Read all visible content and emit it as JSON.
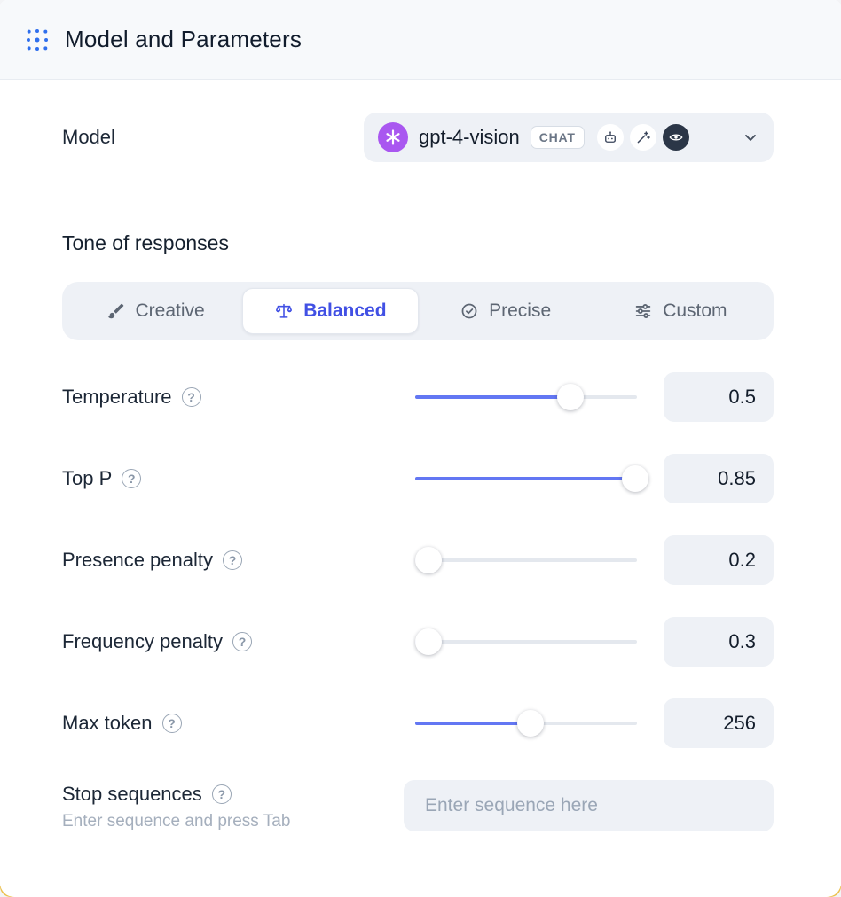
{
  "colors": {
    "accent": "#4150e4",
    "slider": "#6377f3",
    "model_logo": "#a957f0",
    "header_icon": "#2f6fed",
    "yellow_edge": "#ecc14f"
  },
  "header": {
    "title": "Model and Parameters",
    "icon": "scan-dots-icon"
  },
  "model": {
    "label": "Model",
    "name": "gpt-4-vision",
    "type_badge": "CHAT",
    "logo_icon": "openai-logo-icon",
    "capability_icons": [
      "robot-icon",
      "magic-wand-icon",
      "vision-eye-icon"
    ],
    "chevron_icon": "chevron-down-icon"
  },
  "tone": {
    "heading": "Tone of responses",
    "options": [
      {
        "label": "Creative",
        "icon": "paintbrush-icon",
        "selected": false
      },
      {
        "label": "Balanced",
        "icon": "balance-scale-icon",
        "selected": true
      },
      {
        "label": "Precise",
        "icon": "target-check-icon",
        "selected": false
      },
      {
        "label": "Custom",
        "icon": "sliders-icon",
        "selected": false
      }
    ]
  },
  "parameters": [
    {
      "label": "Temperature",
      "value": "0.5",
      "percent": 70
    },
    {
      "label": "Top P",
      "value": "0.85",
      "percent": 99
    },
    {
      "label": "Presence penalty",
      "value": "0.2",
      "percent": 6
    },
    {
      "label": "Frequency penalty",
      "value": "0.3",
      "percent": 6
    },
    {
      "label": "Max token",
      "value": "256",
      "percent": 52
    }
  ],
  "stop_sequences": {
    "label": "Stop sequences",
    "hint": "Enter sequence and press Tab",
    "placeholder": "Enter sequence here",
    "value": ""
  },
  "misc": {
    "help_glyph": "?"
  }
}
